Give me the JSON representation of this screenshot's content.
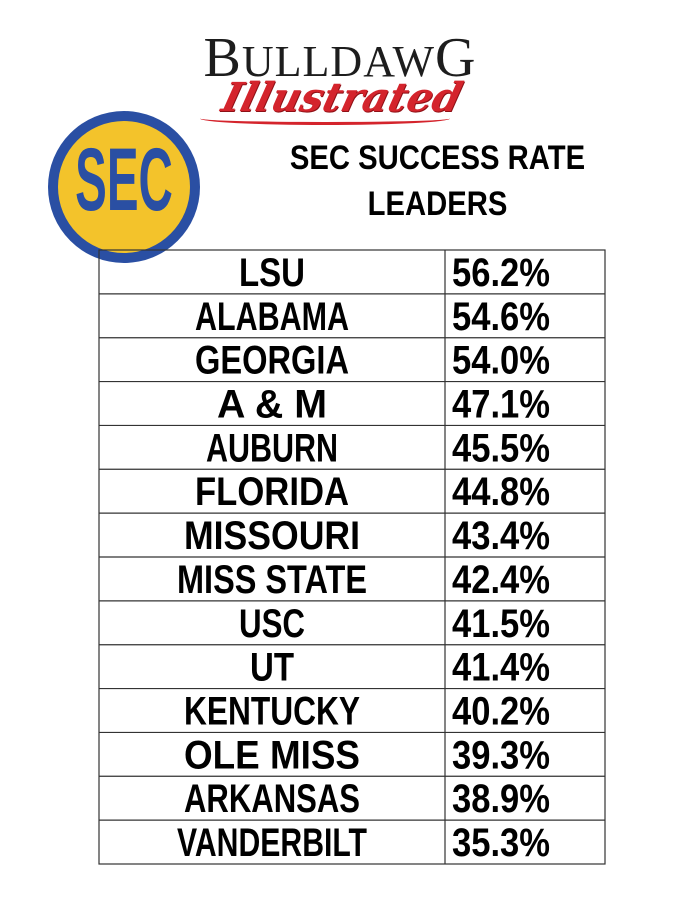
{
  "brand": {
    "line1_first": "B",
    "line1_rest": "ULLDAW",
    "line1_last": "G",
    "line2": "Illustrated"
  },
  "logo": {
    "text": "SEC",
    "ring_color": "#2a4fa3",
    "fill_color": "#f3c32b"
  },
  "chart_data": {
    "type": "table",
    "title_lines": [
      "SEC SUCCESS RATE",
      "LEADERS"
    ],
    "rows": [
      {
        "team": "LSU",
        "rate": "56.2%"
      },
      {
        "team": "ALABAMA",
        "rate": "54.6%"
      },
      {
        "team": "GEORGIA",
        "rate": "54.0%"
      },
      {
        "team": "A & M",
        "rate": "47.1%"
      },
      {
        "team": "AUBURN",
        "rate": "45.5%"
      },
      {
        "team": "FLORIDA",
        "rate": "44.8%"
      },
      {
        "team": "MISSOURI",
        "rate": "43.4%"
      },
      {
        "team": "MISS STATE",
        "rate": "42.4%"
      },
      {
        "team": "USC",
        "rate": "41.5%"
      },
      {
        "team": "UT",
        "rate": "41.4%"
      },
      {
        "team": "KENTUCKY",
        "rate": "40.2%"
      },
      {
        "team": "OLE MISS",
        "rate": "39.3%"
      },
      {
        "team": "ARKANSAS",
        "rate": "38.9%"
      },
      {
        "team": "VANDERBILT",
        "rate": "35.3%"
      }
    ]
  }
}
